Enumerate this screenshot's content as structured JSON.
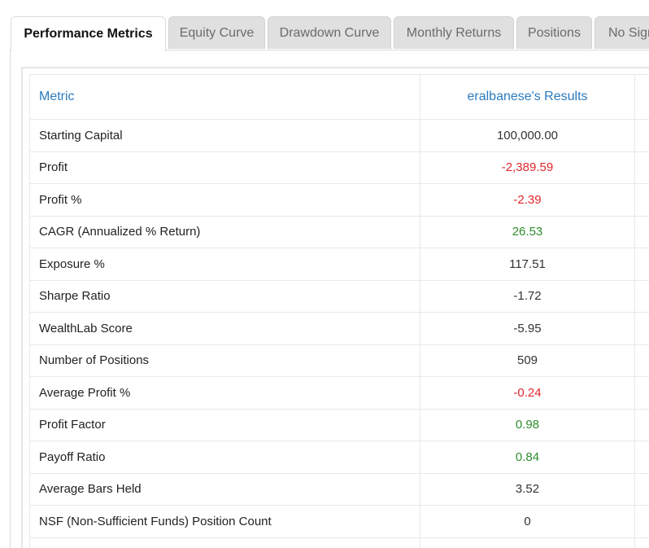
{
  "tabs": [
    {
      "label": "Performance Metrics",
      "active": true
    },
    {
      "label": "Equity Curve"
    },
    {
      "label": "Drawdown Curve"
    },
    {
      "label": "Monthly Returns"
    },
    {
      "label": "Positions"
    },
    {
      "label": "No Sign"
    }
  ],
  "table": {
    "header": {
      "metric": "Metric",
      "results": "eralbanese's Results"
    },
    "rows": [
      {
        "metric": "Starting Capital",
        "value": "100,000.00",
        "tone": "neutral"
      },
      {
        "metric": "Profit",
        "value": "-2,389.59",
        "tone": "neg"
      },
      {
        "metric": "Profit %",
        "value": "-2.39",
        "tone": "neg"
      },
      {
        "metric": "CAGR (Annualized % Return)",
        "value": "26.53",
        "tone": "pos"
      },
      {
        "metric": "Exposure %",
        "value": "117.51",
        "tone": "neutral"
      },
      {
        "metric": "Sharpe Ratio",
        "value": "-1.72",
        "tone": "neutral"
      },
      {
        "metric": "WealthLab Score",
        "value": "-5.95",
        "tone": "neutral"
      },
      {
        "metric": "Number of Positions",
        "value": "509",
        "tone": "neutral"
      },
      {
        "metric": "Average Profit %",
        "value": "-0.24",
        "tone": "neg"
      },
      {
        "metric": "Profit Factor",
        "value": "0.98",
        "tone": "pos"
      },
      {
        "metric": "Payoff Ratio",
        "value": "0.84",
        "tone": "pos"
      },
      {
        "metric": "Average Bars Held",
        "value": "3.52",
        "tone": "neutral"
      },
      {
        "metric": "NSF (Non-Sufficient Funds) Position Count",
        "value": "0",
        "tone": "neutral"
      },
      {
        "metric": "",
        "value": "",
        "tone": "neutral"
      }
    ]
  },
  "colors": {
    "link_blue": "#2a7bbf",
    "negative": "#e0262b",
    "positive": "#2e8b2e"
  }
}
